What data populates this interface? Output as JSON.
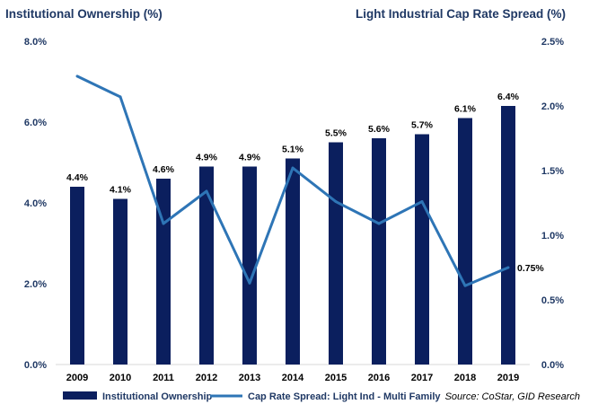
{
  "chart_data": {
    "type": "bar",
    "categories": [
      "2009",
      "2010",
      "2011",
      "2012",
      "2013",
      "2014",
      "2015",
      "2016",
      "2017",
      "2018",
      "2019"
    ],
    "left_axis_title": "Institutional Ownership (%)",
    "right_axis_title": "Light Industrial Cap Rate Spread (%)",
    "left_ticks": [
      "0.0%",
      "2.0%",
      "4.0%",
      "6.0%",
      "8.0%"
    ],
    "right_ticks": [
      "0.0%",
      "0.5%",
      "1.0%",
      "1.5%",
      "2.0%",
      "2.5%"
    ],
    "left_ylim": [
      0,
      8
    ],
    "right_ylim": [
      0,
      2.5
    ],
    "grid": false,
    "legend_position": "bottom-left",
    "series": [
      {
        "name": "Institutional Ownership",
        "type": "bar",
        "axis": "left",
        "color": "#0b1f5e",
        "values": [
          4.4,
          4.1,
          4.6,
          4.9,
          4.9,
          5.1,
          5.5,
          5.6,
          5.7,
          6.1,
          6.4
        ],
        "labels": [
          "4.4%",
          "4.1%",
          "4.6%",
          "4.9%",
          "4.9%",
          "5.1%",
          "5.5%",
          "5.6%",
          "5.7%",
          "6.1%",
          "6.4%"
        ]
      },
      {
        "name": "Cap Rate Spread: Light Ind - Multi Family",
        "type": "line",
        "axis": "right",
        "color": "#2e75b6",
        "values": [
          2.23,
          2.07,
          1.09,
          1.34,
          0.63,
          1.52,
          1.26,
          1.09,
          1.26,
          0.61,
          0.75
        ],
        "end_label": "0.75%"
      }
    ],
    "source": "Source: CoStar, GID Research"
  }
}
